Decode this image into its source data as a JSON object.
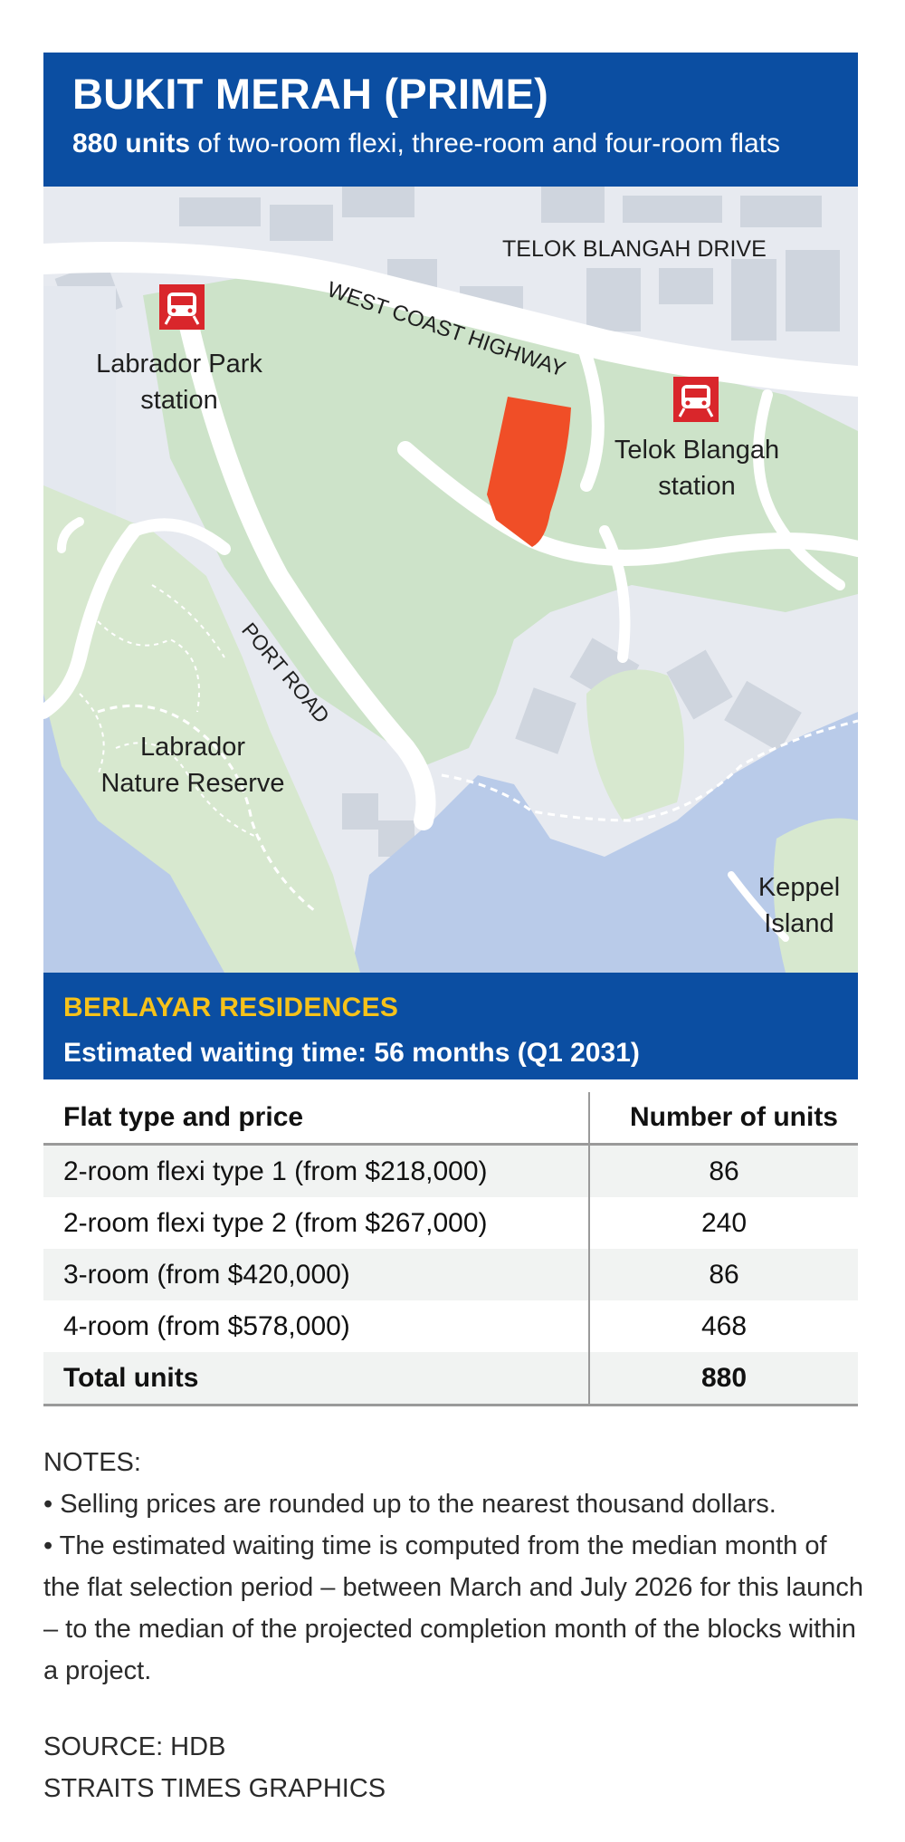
{
  "header": {
    "title": "BUKIT MERAH (PRIME)",
    "units_bold": "880 units",
    "units_rest": " of two-room flexi, three-room and four-room flats"
  },
  "map": {
    "roads": [
      "TELOK BLANGAH DRIVE",
      "WEST COAST HIGHWAY",
      "PORT ROAD"
    ],
    "stations": {
      "labrador_line1": "Labrador Park",
      "labrador_line2": "station",
      "telok_line1": "Telok Blangah",
      "telok_line2": "station"
    },
    "places": {
      "reserve_line1": "Labrador",
      "reserve_line2": "Nature Reserve",
      "keppel_line1": "Keppel",
      "keppel_line2": "Island"
    },
    "station_icon": "train-icon",
    "colors": {
      "site": "#f04e27",
      "park": "#cde3c9",
      "water": "#b9cbe9",
      "station": "#d9262b",
      "blue": "#0b4ea2",
      "yellow": "#f6c21a"
    }
  },
  "project": {
    "name": "BERLAYAR RESIDENCES",
    "waiting": "Estimated waiting time: 56 months (Q1 2031)"
  },
  "table": {
    "headers": [
      "Flat type and price",
      "Number of units"
    ],
    "rows": [
      {
        "type": "2-room flexi type 1 (from $218,000)",
        "units": "86"
      },
      {
        "type": "2-room flexi type 2 (from $267,000)",
        "units": "240"
      },
      {
        "type": "3-room (from $420,000)",
        "units": "86"
      },
      {
        "type": "4-room (from $578,000)",
        "units": "468"
      }
    ],
    "total_label": "Total units",
    "total_value": "880"
  },
  "notes": {
    "heading": "NOTES:",
    "items": [
      "• Selling prices are rounded up to the nearest thousand dollars.",
      "• The estimated waiting time is computed from the median month of the flat selection period – between March and July 2026 for this launch – to the median of the projected completion month of the blocks within a project."
    ]
  },
  "source": {
    "line1": "SOURCE: HDB",
    "line2": "STRAITS TIMES GRAPHICS"
  }
}
